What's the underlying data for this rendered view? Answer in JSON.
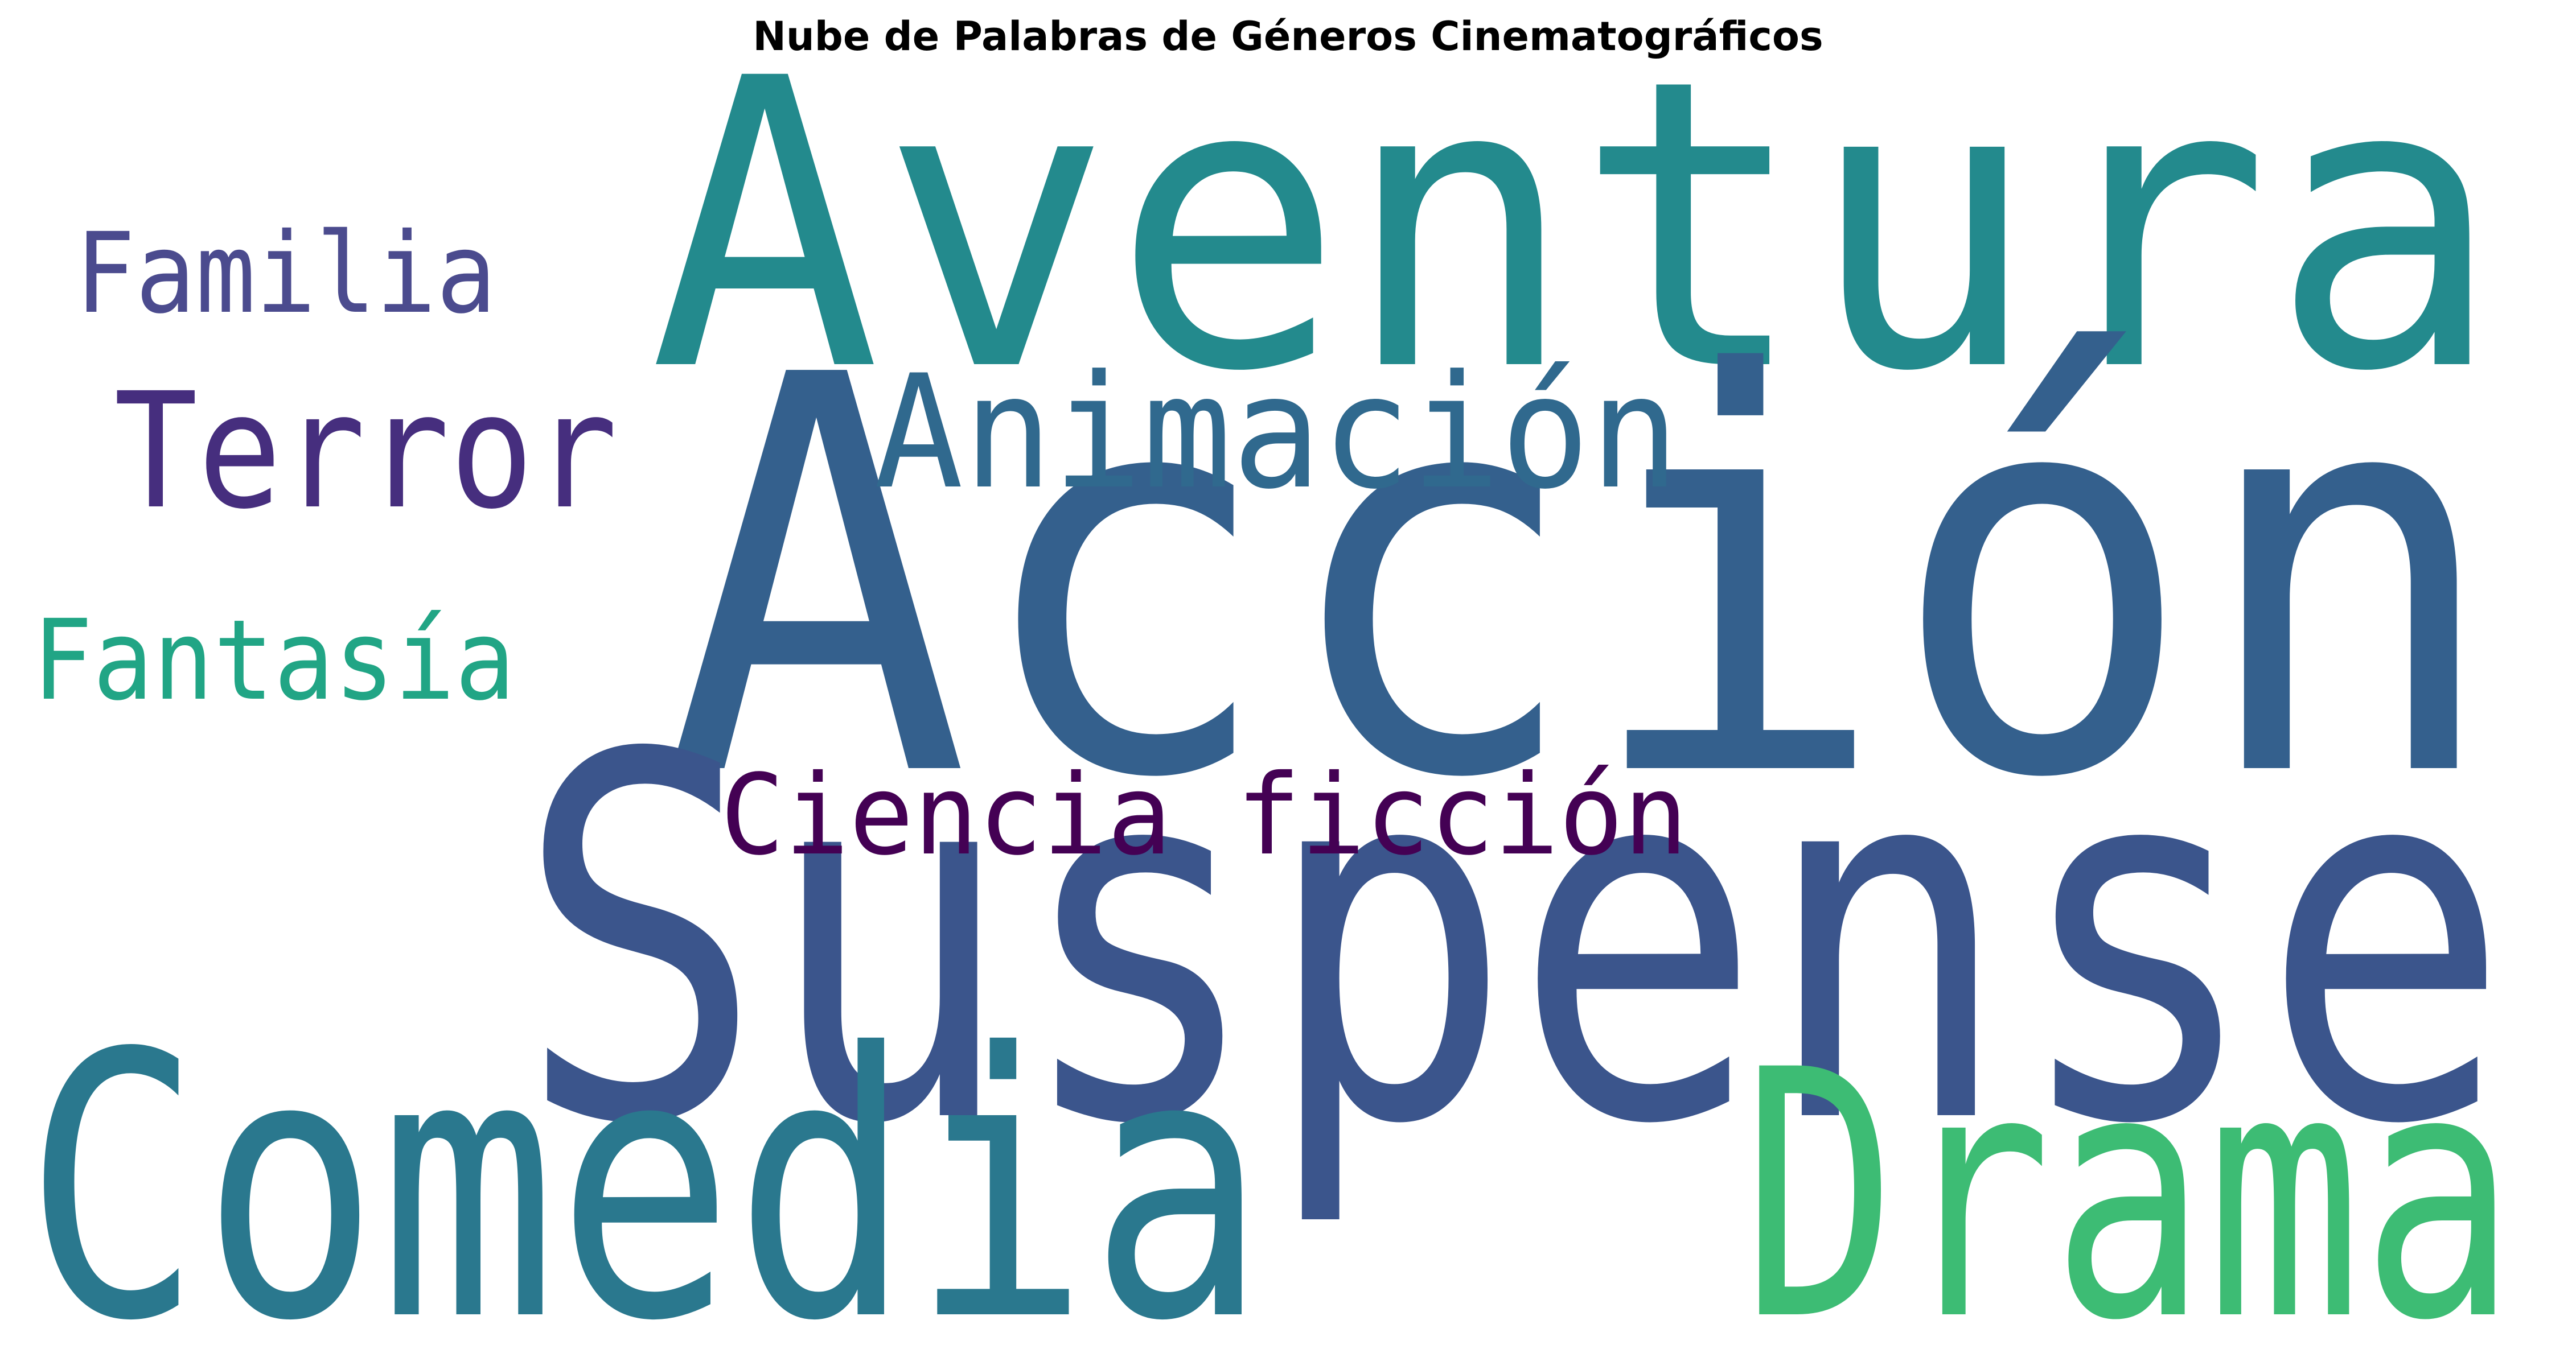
{
  "chart_data": {
    "type": "wordcloud",
    "title": "Nube de Palabras de Géneros Cinematográficos",
    "words": [
      {
        "text": "Aventura",
        "color": "#238a8d"
      },
      {
        "text": "Acción",
        "color": "#34608d"
      },
      {
        "text": "Suspense",
        "color": "#3b558c"
      },
      {
        "text": "Comedia",
        "color": "#2a788e"
      },
      {
        "text": "Drama",
        "color": "#3dbc74"
      },
      {
        "text": "Animación",
        "color": "#30698e"
      },
      {
        "text": "Terror",
        "color": "#462e7e"
      },
      {
        "text": "Familia",
        "color": "#4b4b8e"
      },
      {
        "text": "Fantasía",
        "color": "#21a585"
      },
      {
        "text": "Ciencia ficción",
        "color": "#440154"
      }
    ]
  }
}
